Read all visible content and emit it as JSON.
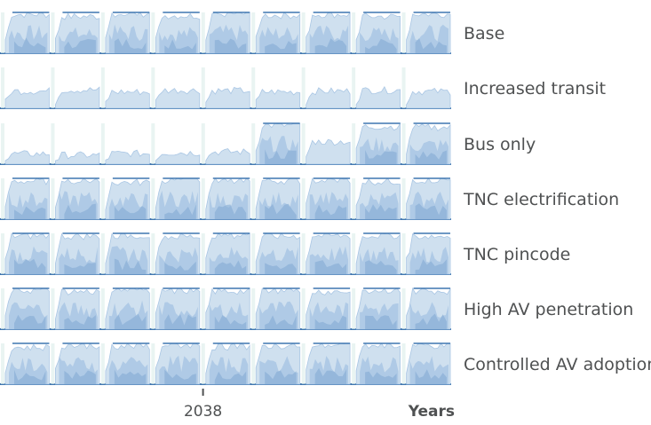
{
  "chart_data": {
    "type": "area",
    "description_units": "Horizon chart (ridgeline) per scenario; values are normalized intensity 0-1 per period",
    "rows": [
      {
        "label": "Base",
        "values": [
          0.95,
          0.9,
          0.97,
          0.92,
          0.96,
          0.93,
          0.95,
          0.9,
          0.96
        ]
      },
      {
        "label": "Increased transit",
        "values": [
          0.42,
          0.45,
          0.4,
          0.44,
          0.43,
          0.4,
          0.42,
          0.44,
          0.41
        ]
      },
      {
        "label": "Bus only",
        "values": [
          0.25,
          0.22,
          0.26,
          0.28,
          0.3,
          0.95,
          0.55,
          0.92,
          0.9
        ]
      },
      {
        "label": "TNC electrification",
        "values": [
          0.93,
          0.95,
          0.9,
          0.96,
          0.92,
          0.94,
          0.95,
          0.92,
          0.96
        ]
      },
      {
        "label": "TNC pincode",
        "values": [
          0.94,
          0.93,
          0.95,
          0.92,
          0.96,
          0.93,
          0.94,
          0.95,
          0.93
        ]
      },
      {
        "label": "High AV penetration",
        "values": [
          0.95,
          0.92,
          0.96,
          0.94,
          0.93,
          0.95,
          0.92,
          0.96,
          0.94
        ]
      },
      {
        "label": "Controlled AV adoption",
        "values": [
          0.9,
          0.95,
          0.93,
          0.96,
          0.92,
          0.94,
          0.96,
          0.93,
          0.95
        ]
      }
    ],
    "periods": 9,
    "x_ticks": [
      {
        "label": "2038",
        "position": 0.45
      }
    ],
    "xlabel": "Years",
    "colors": {
      "light": "#cfe0ef",
      "mid": "#a9c6e4",
      "dark": "#7fa8d2",
      "line": "#3f76b0",
      "gap": "#dff0ec"
    }
  }
}
